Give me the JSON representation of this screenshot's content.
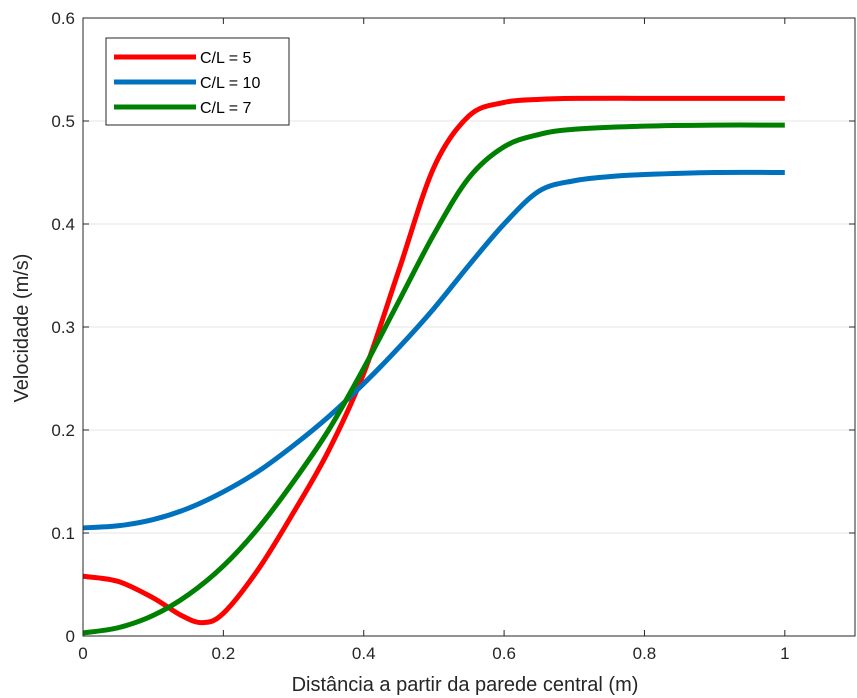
{
  "chart_data": {
    "type": "line",
    "xlabel": "Distância a partir da parede central (m)",
    "ylabel": "Velocidade (m/s)",
    "xlim": [
      0,
      1.1
    ],
    "ylim": [
      0,
      0.6
    ],
    "xticks": [
      0,
      0.2,
      0.4,
      0.6,
      0.8,
      1
    ],
    "yticks": [
      0,
      0.1,
      0.2,
      0.3,
      0.4,
      0.5,
      0.6
    ],
    "grid": "horizontal",
    "legend_position": "top-left",
    "series": [
      {
        "name": "C/L = 5",
        "color": "#ff0000",
        "x": [
          0,
          0.05,
          0.1,
          0.14,
          0.17,
          0.2,
          0.25,
          0.3,
          0.35,
          0.4,
          0.45,
          0.5,
          0.55,
          0.6,
          0.65,
          0.7,
          0.8,
          0.9,
          1.0
        ],
        "y": [
          0.058,
          0.053,
          0.037,
          0.02,
          0.013,
          0.022,
          0.065,
          0.12,
          0.18,
          0.255,
          0.355,
          0.455,
          0.505,
          0.518,
          0.521,
          0.522,
          0.522,
          0.522,
          0.522
        ]
      },
      {
        "name": "C/L = 10",
        "color": "#0072bd",
        "x": [
          0,
          0.05,
          0.1,
          0.15,
          0.2,
          0.25,
          0.3,
          0.35,
          0.4,
          0.45,
          0.5,
          0.55,
          0.6,
          0.65,
          0.7,
          0.75,
          0.8,
          0.9,
          1.0
        ],
        "y": [
          0.105,
          0.107,
          0.113,
          0.124,
          0.14,
          0.16,
          0.185,
          0.213,
          0.245,
          0.28,
          0.318,
          0.36,
          0.4,
          0.432,
          0.442,
          0.446,
          0.448,
          0.45,
          0.45
        ]
      },
      {
        "name": "C/L = 7",
        "color": "#008000",
        "x": [
          0,
          0.05,
          0.1,
          0.15,
          0.2,
          0.25,
          0.3,
          0.35,
          0.4,
          0.45,
          0.5,
          0.55,
          0.6,
          0.65,
          0.7,
          0.8,
          0.9,
          1.0
        ],
        "y": [
          0.003,
          0.008,
          0.02,
          0.04,
          0.068,
          0.105,
          0.15,
          0.2,
          0.26,
          0.325,
          0.39,
          0.445,
          0.475,
          0.487,
          0.492,
          0.495,
          0.496,
          0.496
        ]
      }
    ]
  }
}
